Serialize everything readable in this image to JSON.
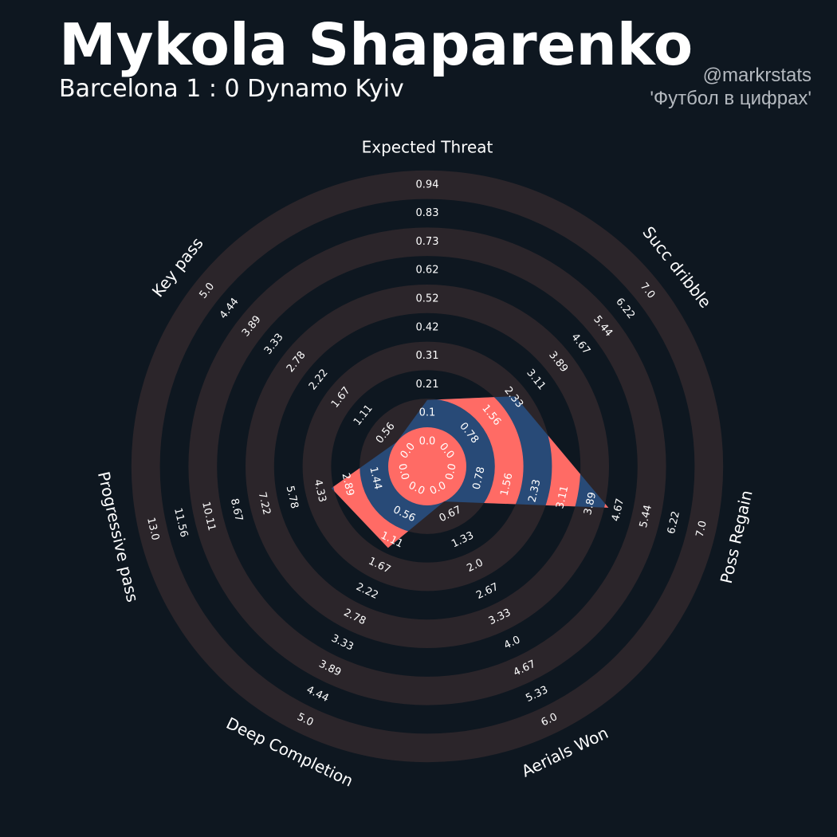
{
  "header": {
    "player_name": "Mykola Shaparenko",
    "match": "Barcelona 1 : 0 Dynamo Kyiv",
    "credit_handle": "@markrstats",
    "credit_caption": "'Футбол в цифрах'"
  },
  "colors": {
    "background": "#0e1720",
    "ring_band": "#2b252a",
    "polygon_fill": "#284a77",
    "polygon_stripe": "#ff6b65",
    "text": "#ffffff"
  },
  "chart_data": {
    "type": "radar",
    "params": [
      {
        "label": "Expected Threat",
        "min": 0.0,
        "max": 0.94,
        "value": 0.1,
        "ticks": [
          "0.0",
          "0.1",
          "0.21",
          "0.31",
          "0.42",
          "0.52",
          "0.62",
          "0.73",
          "0.83",
          "0.94"
        ]
      },
      {
        "label": "Succ dribble",
        "min": 0.0,
        "max": 7.0,
        "value": 2.0,
        "ticks": [
          "0.0",
          "0.78",
          "1.56",
          "2.33",
          "3.11",
          "3.89",
          "4.67",
          "5.44",
          "6.22",
          "7.0"
        ]
      },
      {
        "label": "Poss Regain",
        "min": 0.0,
        "max": 7.0,
        "value": 4.0,
        "ticks": [
          "0.0",
          "0.78",
          "1.56",
          "2.33",
          "3.11",
          "3.89",
          "4.67",
          "5.44",
          "6.22",
          "7.0"
        ]
      },
      {
        "label": "Aerials Won",
        "min": 0.0,
        "max": 6.0,
        "value": 0.0,
        "ticks": [
          "0.0",
          "0.67",
          "1.33",
          "2.0",
          "2.67",
          "3.33",
          "4.0",
          "4.67",
          "5.33",
          "6.0"
        ]
      },
      {
        "label": "Deep Completion",
        "min": 0.0,
        "max": 5.0,
        "value": 1.0,
        "ticks": [
          "0.0",
          "0.56",
          "1.11",
          "1.67",
          "2.22",
          "2.78",
          "3.33",
          "3.89",
          "4.44",
          "5.0"
        ]
      },
      {
        "label": "Progressive pass",
        "min": 0.0,
        "max": 13.0,
        "value": 3.0,
        "ticks": [
          "0.0",
          "1.44",
          "2.89",
          "4.33",
          "5.78",
          "7.22",
          "8.67",
          "10.11",
          "11.56",
          "13.0"
        ]
      },
      {
        "label": "Key pass",
        "min": 0.0,
        "max": 5.0,
        "value": 0.0,
        "ticks": [
          "0.0",
          "0.56",
          "1.11",
          "1.67",
          "2.22",
          "2.78",
          "3.33",
          "3.89",
          "4.44",
          "5.0"
        ]
      }
    ],
    "start_angle_deg": 90,
    "direction": "clockwise",
    "rings": 10,
    "title": "Mykola Shaparenko",
    "subtitle": "Barcelona 1 : 0 Dynamo Kyiv"
  }
}
